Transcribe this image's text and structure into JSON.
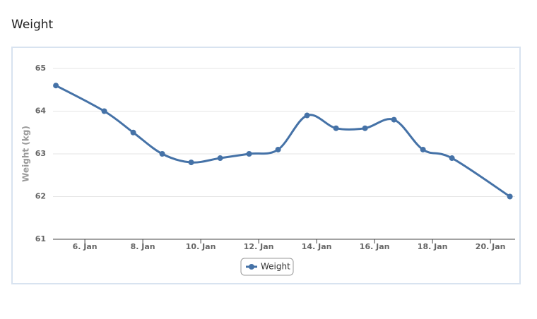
{
  "page_title": "Weight",
  "chart_data": {
    "type": "line",
    "y_label": "Weight (kg)",
    "x": [
      5,
      6.67,
      7.67,
      8.67,
      9.67,
      10.67,
      11.67,
      12.67,
      13.67,
      14.67,
      15.67,
      16.67,
      17.67,
      18.67,
      20.67
    ],
    "series": [
      {
        "name": "Weight",
        "color": "#4572a7",
        "values": [
          64.6,
          64.0,
          63.5,
          63.0,
          62.8,
          62.9,
          63.0,
          63.1,
          63.9,
          63.6,
          63.6,
          63.8,
          63.1,
          62.9,
          62.0
        ]
      }
    ],
    "xlim": [
      4.9,
      20.85
    ],
    "xticks": [
      {
        "value": 6,
        "label": "6. Jan"
      },
      {
        "value": 8,
        "label": "8. Jan"
      },
      {
        "value": 10,
        "label": "10. Jan"
      },
      {
        "value": 12,
        "label": "12. Jan"
      },
      {
        "value": 14,
        "label": "14. Jan"
      },
      {
        "value": 16,
        "label": "16. Jan"
      },
      {
        "value": 18,
        "label": "18. Jan"
      },
      {
        "value": 20,
        "label": "20. Jan"
      }
    ],
    "ylim": [
      61,
      65
    ],
    "yticks": [
      61,
      62,
      63,
      64,
      65
    ],
    "grid": true,
    "legend": "bottom",
    "smooth": true
  }
}
